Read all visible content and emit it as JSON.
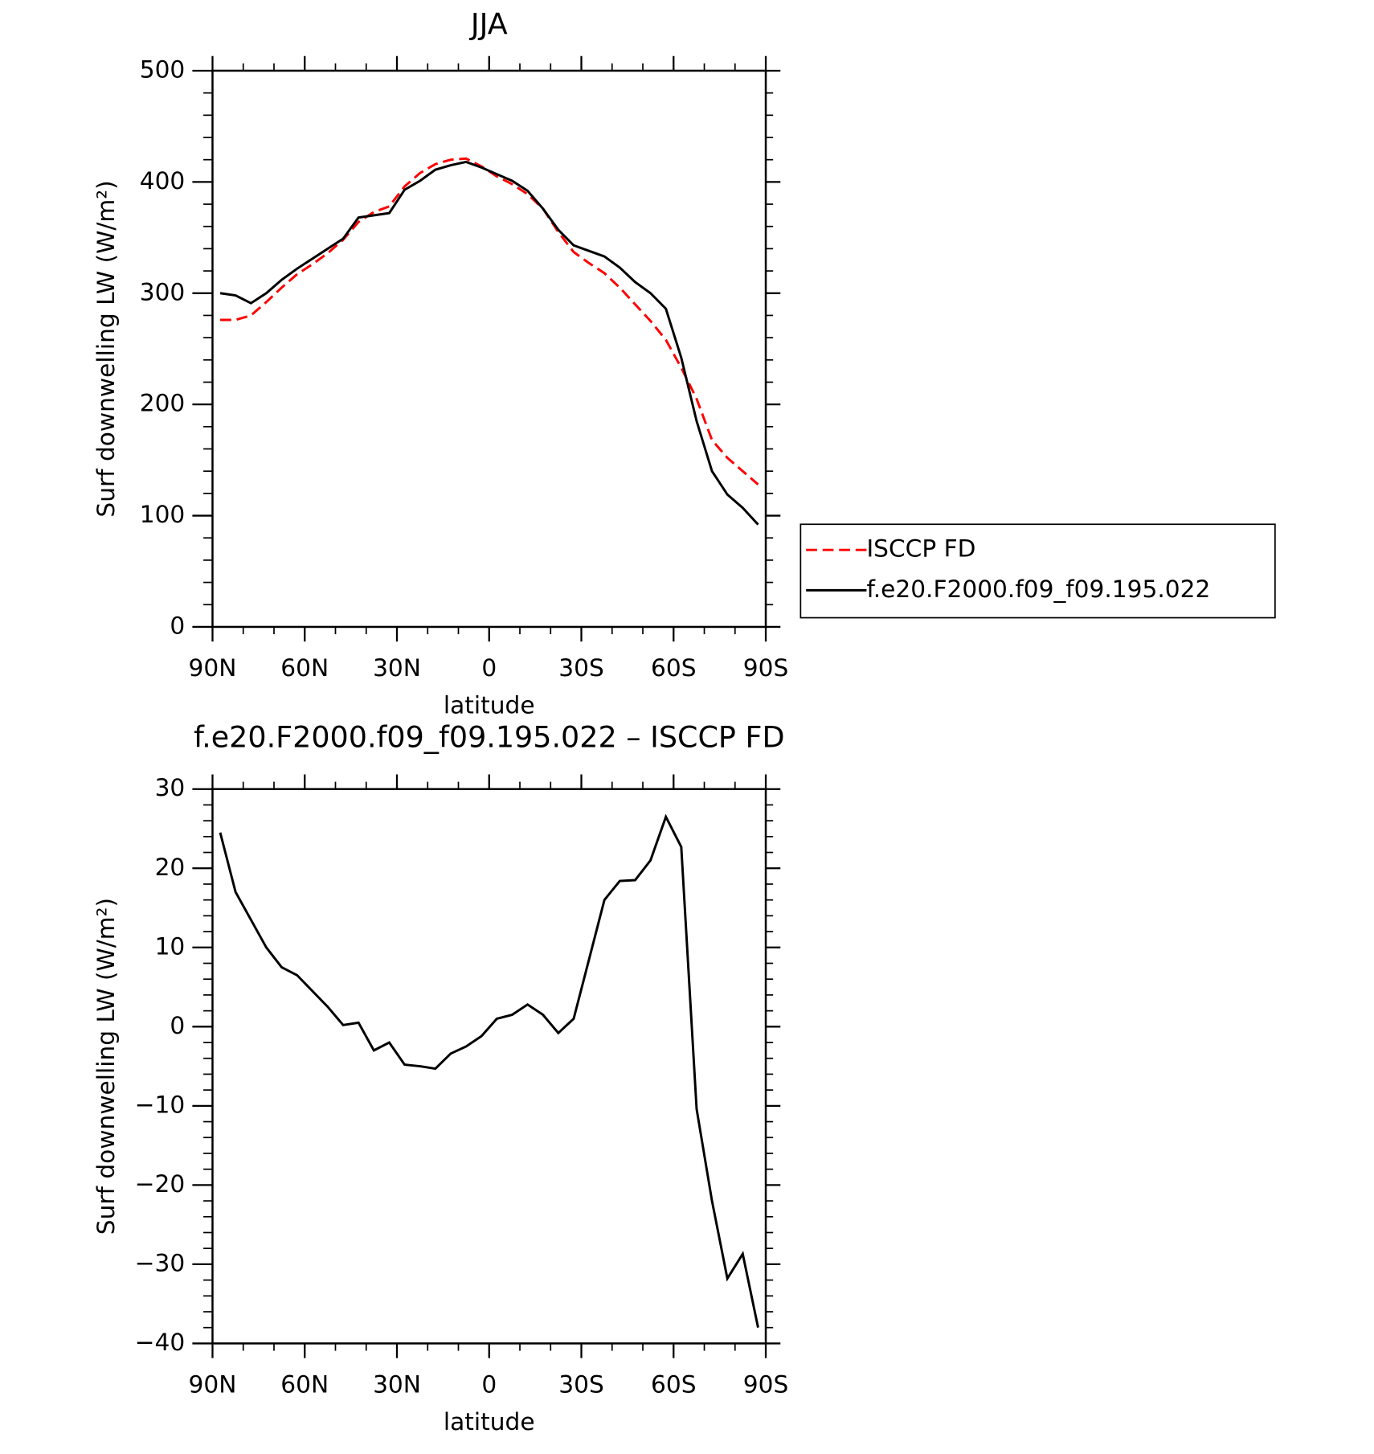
{
  "chart_data": [
    {
      "type": "line",
      "title": "JJA",
      "x_label": "latitude",
      "y_label": "Surf downwelling LW (W/m²)",
      "x": [
        87.5,
        82.5,
        77.5,
        72.5,
        67.5,
        62.5,
        57.5,
        52.5,
        47.5,
        42.5,
        37.5,
        32.5,
        27.5,
        22.5,
        17.5,
        12.5,
        7.5,
        2.5,
        -2.5,
        -7.5,
        -12.5,
        -17.5,
        -22.5,
        -27.5,
        -32.5,
        -37.5,
        -42.5,
        -47.5,
        -52.5,
        -57.5,
        -62.5,
        -67.5,
        -72.5,
        -77.5,
        -82.5,
        -87.5
      ],
      "xlim": [
        90,
        -90
      ],
      "xticks": [
        {
          "value": 90,
          "label": "90N"
        },
        {
          "value": 60,
          "label": "60N"
        },
        {
          "value": 30,
          "label": "30N"
        },
        0,
        {
          "value": -30,
          "label": "30S"
        },
        {
          "value": -60,
          "label": "60S"
        },
        {
          "value": -90,
          "label": "90S"
        }
      ],
      "ylim": [
        0,
        500
      ],
      "yticks": [
        0,
        100,
        200,
        300,
        400,
        500
      ],
      "legend": "right",
      "series": [
        {
          "name": "ISCCP FD",
          "color": "#ff0000",
          "line_style": "dashed",
          "values": [
            276,
            276,
            280,
            292,
            305,
            317,
            326,
            336,
            348,
            364,
            373,
            378,
            396,
            408,
            416,
            420,
            421,
            414,
            405,
            398,
            389,
            376,
            355,
            337,
            327,
            318,
            305,
            290,
            275,
            258,
            233,
            205,
            168,
            152,
            140,
            128
          ]
        },
        {
          "name": "f.e20.F2000.f09_f09.195.022",
          "color": "#000000",
          "line_style": "solid",
          "values": [
            300,
            298,
            291,
            300,
            312,
            322,
            331,
            340,
            349,
            368,
            370,
            372,
            393,
            401,
            411,
            415,
            418,
            413,
            407,
            401,
            392,
            376,
            357,
            343,
            338,
            333,
            323,
            310,
            300,
            286,
            242,
            185,
            140,
            119,
            107,
            92
          ]
        }
      ]
    },
    {
      "type": "line",
      "title": "f.e20.F2000.f09_f09.195.022 – ISCCP FD",
      "x_label": "latitude",
      "y_label": "Surf downwelling LW (W/m²)",
      "x": [
        87.5,
        82.5,
        77.5,
        72.5,
        67.5,
        62.5,
        57.5,
        52.5,
        47.5,
        42.5,
        37.5,
        32.5,
        27.5,
        22.5,
        17.5,
        12.5,
        7.5,
        2.5,
        -2.5,
        -7.5,
        -12.5,
        -17.5,
        -22.5,
        -27.5,
        -32.5,
        -37.5,
        -42.5,
        -47.5,
        -52.5,
        -57.5,
        -62.5,
        -67.5,
        -72.5,
        -77.5,
        -82.5,
        -87.5
      ],
      "xlim": [
        90,
        -90
      ],
      "xticks": [
        {
          "value": 90,
          "label": "90N"
        },
        {
          "value": 60,
          "label": "60N"
        },
        {
          "value": 30,
          "label": "30N"
        },
        0,
        {
          "value": -30,
          "label": "30S"
        },
        {
          "value": -60,
          "label": "60S"
        },
        {
          "value": -90,
          "label": "90S"
        }
      ],
      "ylim": [
        -40,
        30
      ],
      "yticks": [
        {
          "value": -40,
          "label": "−40"
        },
        {
          "value": -30,
          "label": "−30"
        },
        {
          "value": -20,
          "label": "−20"
        },
        {
          "value": -10,
          "label": "−10"
        },
        0,
        10,
        20,
        30
      ],
      "series": [
        {
          "color": "#000000",
          "line_style": "solid",
          "values": [
            24.5,
            17,
            13.5,
            10,
            7.5,
            6.5,
            4.5,
            2.5,
            0.2,
            0.5,
            -3,
            -2,
            -4.8,
            -5,
            -5.3,
            -3.4,
            -2.5,
            -1.2,
            1,
            1.5,
            2.8,
            1.5,
            -0.8,
            1,
            8.5,
            16,
            18.4,
            18.5,
            21,
            26.5,
            22.7,
            -10.4,
            -22,
            -31.8,
            -28.7,
            -38
          ]
        }
      ]
    }
  ]
}
